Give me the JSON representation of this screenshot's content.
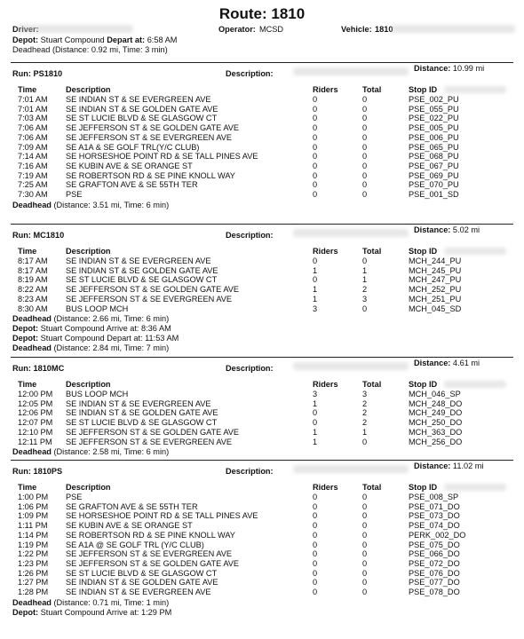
{
  "title": "Route: 1810",
  "header": {
    "driver_label": "Driver:",
    "operator_label": "Operator:",
    "operator_value": "MCSD",
    "vehicle_label": "Vehicle:",
    "vehicle_value": "1810",
    "depot_label": "Depot:",
    "depot_value": "Stuart Compound",
    "depart_label": "Depart at:",
    "depart_value": "6:58 AM",
    "deadhead_text": "Deadhead (Distance: 0.92 mi, Time: 3 min)"
  },
  "columns": {
    "time": "Time",
    "desc": "Description",
    "riders": "Riders",
    "total": "Total",
    "stop": "Stop ID"
  },
  "runs": [
    {
      "label": "Run: PS1810",
      "desc_label": "Description:",
      "dist_label": "Distance:",
      "dist_value": "10.99 mi",
      "rows": [
        [
          "7:01 AM",
          "SE INDIAN ST & SE EVERGREEN AVE",
          "0",
          "0",
          "PSE_002_PU"
        ],
        [
          "7:01 AM",
          "SE INDIAN ST & SE GOLDEN GATE AVE",
          "0",
          "0",
          "PSE_055_PU"
        ],
        [
          "7:03 AM",
          "SE ST LUCIE BLVD & SE GLASGOW CT",
          "0",
          "0",
          "PSE_022_PU"
        ],
        [
          "7:06 AM",
          "SE JEFFERSON ST & SE GOLDEN GATE AVE",
          "0",
          "0",
          "PSE_005_PU"
        ],
        [
          "7:06 AM",
          "SE JEFFERSON ST & SE EVERGREEN AVE",
          "0",
          "0",
          "PSE_006_PU"
        ],
        [
          "7:09 AM",
          "SE A1A & SE GOLF TRL(Y/C CLUB)",
          "0",
          "0",
          "PSE_065_PU"
        ],
        [
          "7:14 AM",
          "SE HORSESHOE POINT RD & SE TALL PINES AVE",
          "0",
          "0",
          "PSE_068_PU"
        ],
        [
          "7:16 AM",
          "SE KUBIN AVE & SE ORANGE ST",
          "0",
          "0",
          "PSE_067_PU"
        ],
        [
          "7:19 AM",
          "SE ROBERTSON RD & SE PINE KNOLL WAY",
          "0",
          "0",
          "PSE_069_PU"
        ],
        [
          "7:25 AM",
          "SE GRAFTON AVE & SE 55TH TER",
          "0",
          "0",
          "PSE_070_PU"
        ],
        [
          "7:30 AM",
          "PSE",
          "0",
          "0",
          "PSE_001_SD"
        ]
      ],
      "footer": [
        "Deadhead (Distance: 3.51 mi, Time: 6 min)"
      ]
    },
    {
      "label": "Run: MC1810",
      "desc_label": "Description:",
      "dist_label": "Distance:",
      "dist_value": "5.02 mi",
      "rows": [
        [
          "8:17 AM",
          "SE INDIAN ST & SE EVERGREEN AVE",
          "0",
          "0",
          "MCH_244_PU"
        ],
        [
          "8:17 AM",
          "SE INDIAN ST & SE GOLDEN GATE AVE",
          "1",
          "1",
          "MCH_245_PU"
        ],
        [
          "8:19 AM",
          "SE ST LUCIE BLVD & SE GLASGOW CT",
          "0",
          "1",
          "MCH_247_PU"
        ],
        [
          "8:22 AM",
          "SE JEFFERSON ST & SE GOLDEN GATE AVE",
          "1",
          "2",
          "MCH_252_PU"
        ],
        [
          "8:23 AM",
          "SE JEFFERSON ST & SE EVERGREEN AVE",
          "1",
          "3",
          "MCH_251_PU"
        ],
        [
          "8:30 AM",
          "BUS LOOP MCH",
          "3",
          "0",
          "MCH_045_SD"
        ]
      ],
      "footer": [
        "Deadhead (Distance: 2.66 mi, Time: 6 min)",
        "Depot: Stuart Compound Arrive at: 8:36 AM",
        "Depot: Stuart Compound Depart at: 11:53 AM",
        "Deadhead (Distance: 2.84 mi, Time: 7 min)"
      ]
    },
    {
      "label": "Run: 1810MC",
      "desc_label": "Description:",
      "dist_label": "Distance:",
      "dist_value": "4.61 mi",
      "rows": [
        [
          "12:00 PM",
          "BUS LOOP MCH",
          "3",
          "3",
          "MCH_046_SP"
        ],
        [
          "12:05 PM",
          "SE INDIAN ST & SE EVERGREEN AVE",
          "1",
          "2",
          "MCH_248_DO"
        ],
        [
          "12:06 PM",
          "SE INDIAN ST & SE GOLDEN GATE AVE",
          "0",
          "2",
          "MCH_249_DO"
        ],
        [
          "12:07 PM",
          "SE ST LUCIE BLVD & SE GLASGOW CT",
          "0",
          "2",
          "MCH_250_DO"
        ],
        [
          "12:10 PM",
          "SE JEFFERSON ST & SE GOLDEN GATE AVE",
          "1",
          "1",
          "MCH_363_DO"
        ],
        [
          "12:11 PM",
          "SE JEFFERSON ST & SE EVERGREEN AVE",
          "1",
          "0",
          "MCH_256_DO"
        ]
      ],
      "footer": [
        "Deadhead (Distance: 2.58 mi, Time: 6 min)"
      ]
    },
    {
      "label": "Run: 1810PS",
      "desc_label": "Description:",
      "dist_label": "Distance:",
      "dist_value": "11.02 mi",
      "rows": [
        [
          "1:00 PM",
          "PSE",
          "0",
          "0",
          "PSE_008_SP"
        ],
        [
          "1:06 PM",
          "SE GRAFTON AVE & SE 55TH TER",
          "0",
          "0",
          "PSE_071_DO"
        ],
        [
          "1:09 PM",
          "SE HORSESHOE POINT RD & SE TALL PINES AVE",
          "0",
          "0",
          "PSE_073_DO"
        ],
        [
          "1:11 PM",
          "SE KUBIN AVE & SE ORANGE ST",
          "0",
          "0",
          "PSE_074_DO"
        ],
        [
          "1:14 PM",
          "SE ROBERTSON RD & SE PINE KNOLL WAY",
          "0",
          "0",
          "PERK_002_DO"
        ],
        [
          "1:19 PM",
          "SE A1A @ SE GOLF TRL (Y/C CLUB)",
          "0",
          "0",
          "PSE_075_DO"
        ],
        [
          "1:22 PM",
          "SE JEFFERSON ST & SE EVERGREEN AVE",
          "0",
          "0",
          "PSE_066_DO"
        ],
        [
          "1:23 PM",
          "SE JEFFERSON ST & SE GOLDEN GATE AVE",
          "0",
          "0",
          "PSE_072_DO"
        ],
        [
          "1:26 PM",
          "SE ST LUCIE BLVD & SE GLASGOW CT",
          "0",
          "0",
          "PSE_076_DO"
        ],
        [
          "1:27 PM",
          "SE INDIAN ST & SE GOLDEN GATE AVE",
          "0",
          "0",
          "PSE_077_DO"
        ],
        [
          "1:28 PM",
          "SE INDIAN ST & SE EVERGREEN AVE",
          "0",
          "0",
          "PSE_078_DO"
        ]
      ],
      "footer": [
        "Deadhead (Distance: 0.71 mi, Time: 1 min)",
        "Depot: Stuart Compound Arrive at: 1:29 PM"
      ]
    }
  ]
}
